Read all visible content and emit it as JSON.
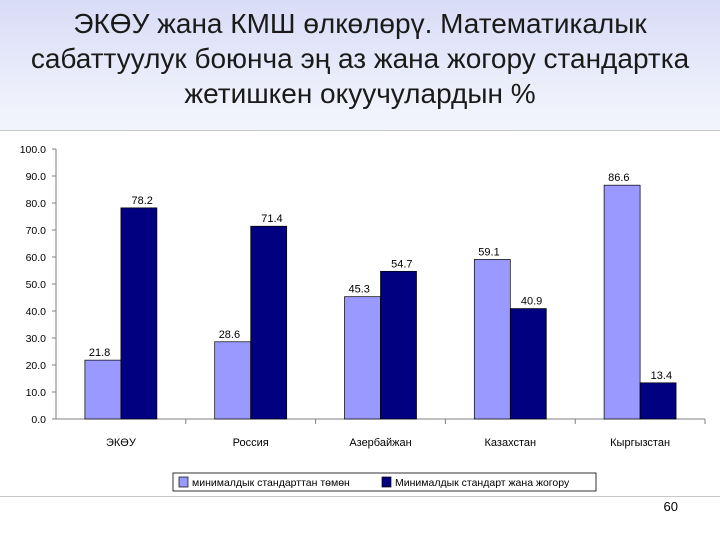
{
  "slide": {
    "title_lines": [
      "ЭКӨУ жана КМШ өлкөлөрү. Математикалык",
      "сабаттуулук боюнча эң аз жана жогору стандартка",
      "жетишкен окуучулардын %"
    ],
    "page_number": "60"
  },
  "chart_data": {
    "type": "bar",
    "title": "",
    "xlabel": "",
    "ylabel": "",
    "categories": [
      "ЭКӨУ",
      "Россия",
      "Азербайжан",
      "Казахстан",
      "Кыргызстан"
    ],
    "series": [
      {
        "name": "минималдык стандарттан төмөн",
        "values": [
          21.8,
          28.6,
          45.3,
          59.1,
          86.6
        ],
        "color": "#9999ff"
      },
      {
        "name": "Минималдык  стандарт жана жогору",
        "values": [
          78.2,
          71.4,
          54.7,
          40.9,
          13.4
        ],
        "color": "#000080"
      }
    ],
    "ylim": [
      0,
      100
    ],
    "yticks": [
      "0.0",
      "10.0",
      "20.0",
      "30.0",
      "40.0",
      "50.0",
      "60.0",
      "70.0",
      "80.0",
      "90.0",
      "100.0"
    ],
    "grid": false,
    "legend": "bottom",
    "data_labels": true
  }
}
